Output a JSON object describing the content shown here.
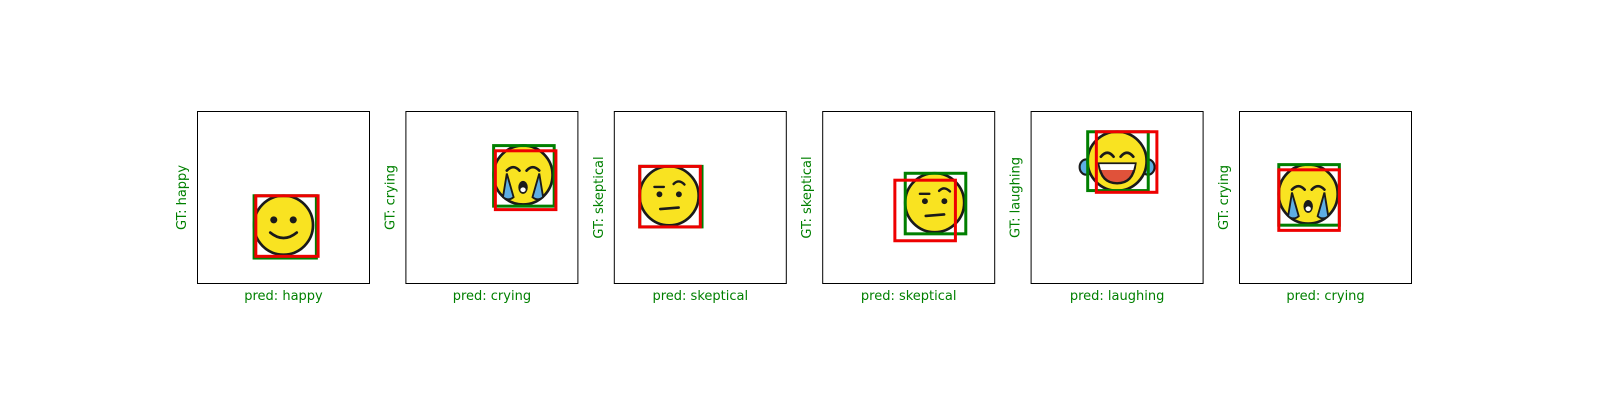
{
  "colors": {
    "label": "#008000",
    "gt_box": "#007f00",
    "pred_box": "#ee0000",
    "face": "#f9e321",
    "outline": "#1a1a1a",
    "tear": "#5eaee3",
    "mouth_open": "#e0523a",
    "frame": "#000000"
  },
  "panels": [
    {
      "gt_label": "GT: happy",
      "pred_label": "pred: happy",
      "emoji": "happy-face-icon",
      "face": [
        0.5,
        0.66,
        0.155
      ],
      "gt_box": [
        0.33,
        0.49,
        0.69,
        0.85
      ],
      "pred_box": [
        0.34,
        0.49,
        0.7,
        0.84
      ]
    },
    {
      "gt_label": "GT: crying",
      "pred_label": "pred: crying",
      "emoji": "crying-face-icon",
      "face": [
        0.68,
        0.37,
        0.155
      ],
      "gt_box": [
        0.51,
        0.2,
        0.86,
        0.55
      ],
      "pred_box": [
        0.52,
        0.23,
        0.87,
        0.57
      ]
    },
    {
      "gt_label": "GT: skeptical",
      "pred_label": "pred: skeptical",
      "emoji": "skeptical-face-icon",
      "face": [
        0.32,
        0.49,
        0.155
      ],
      "gt_box": [
        0.15,
        0.32,
        0.51,
        0.67
      ],
      "pred_box": [
        0.15,
        0.32,
        0.5,
        0.67
      ]
    },
    {
      "gt_label": "GT: skeptical",
      "pred_label": "pred: skeptical",
      "emoji": "skeptical-face-icon",
      "face": [
        0.65,
        0.53,
        0.155
      ],
      "gt_box": [
        0.48,
        0.36,
        0.83,
        0.71
      ],
      "pred_box": [
        0.42,
        0.4,
        0.77,
        0.75
      ]
    },
    {
      "gt_label": "GT: laughing",
      "pred_label": "pred: laughing",
      "emoji": "laughing-face-icon",
      "face": [
        0.5,
        0.29,
        0.155
      ],
      "gt_box": [
        0.33,
        0.12,
        0.68,
        0.46
      ],
      "pred_box": [
        0.38,
        0.12,
        0.73,
        0.47
      ]
    },
    {
      "gt_label": "GT: crying",
      "pred_label": "pred: crying",
      "emoji": "crying-face-icon",
      "face": [
        0.4,
        0.48,
        0.155
      ],
      "gt_box": [
        0.23,
        0.31,
        0.58,
        0.66
      ],
      "pred_box": [
        0.23,
        0.34,
        0.58,
        0.69
      ]
    }
  ]
}
